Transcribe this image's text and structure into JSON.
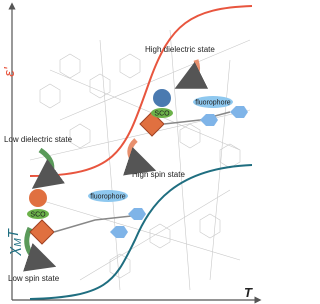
{
  "axes": {
    "y_top_label": "ε'",
    "y_bottom_label": {
      "symbol": "χ",
      "subscript": "M",
      "suffix": "T"
    },
    "x_label": "T"
  },
  "states": {
    "high_dielectric": "High dielectric state",
    "low_dielectric": "Low dielectric state",
    "high_spin": "High spin state",
    "low_spin": "Low spin state"
  },
  "tags": {
    "sco_top": "SCO",
    "sco_bottom": "SCO",
    "fluorophore_top": "fluorophore",
    "fluorophore_bottom": "fluorophore"
  }
}
